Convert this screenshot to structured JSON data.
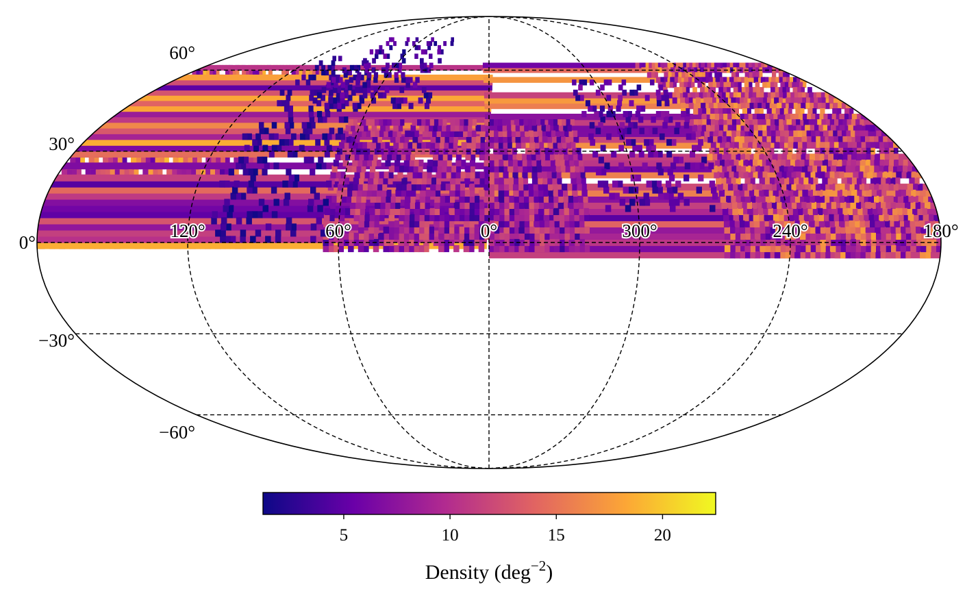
{
  "chart_data": {
    "type": "heatmap",
    "projection": "mollweide",
    "xlabel": "",
    "ylabel": "",
    "grid": true,
    "longitude_tick_labels": [
      "120°",
      "60°",
      "0°",
      "300°",
      "240°",
      "180°"
    ],
    "latitude_tick_labels": [
      "60°",
      "30°",
      "0°",
      "−30°",
      "−60°"
    ],
    "longitude_ticks": [
      120,
      60,
      0,
      300,
      240,
      180
    ],
    "latitude_ticks": [
      60,
      30,
      0,
      -30,
      -60
    ],
    "colormap": "plasma",
    "colormap_stops": [
      "#0d0887",
      "#6a00a8",
      "#b12a90",
      "#e16462",
      "#fca636",
      "#f0f921"
    ],
    "colorbar": {
      "label": "Density (deg",
      "label_exponent": "−2",
      "label_suffix": ")",
      "range": [
        1.2,
        22.5
      ],
      "ticks": [
        5,
        10,
        15,
        20
      ],
      "tick_labels": [
        "5",
        "10",
        "15",
        "20"
      ]
    },
    "density_regions": [
      {
        "lon_range": [
          95,
          180
        ],
        "lat_range": [
          -2,
          62
        ],
        "mean_density": 13
      },
      {
        "lon_range": [
          180,
          265
        ],
        "lat_range": [
          -5,
          62
        ],
        "mean_density": 12
      },
      {
        "lon_range": [
          320,
          360
        ],
        "lat_range": [
          -3,
          40
        ],
        "mean_density": 9
      },
      {
        "lon_range": [
          0,
          65
        ],
        "lat_range": [
          -3,
          40
        ],
        "mean_density": 9
      },
      {
        "lon_range": [
          265,
          315
        ],
        "lat_range": [
          10,
          55
        ],
        "mean_density": 5
      },
      {
        "lon_range": [
          65,
          110
        ],
        "lat_range": [
          0,
          65
        ],
        "mean_density": 3
      },
      {
        "lon_range": [
          30,
          90
        ],
        "lat_range": [
          45,
          75
        ],
        "mean_density": 4
      }
    ]
  }
}
